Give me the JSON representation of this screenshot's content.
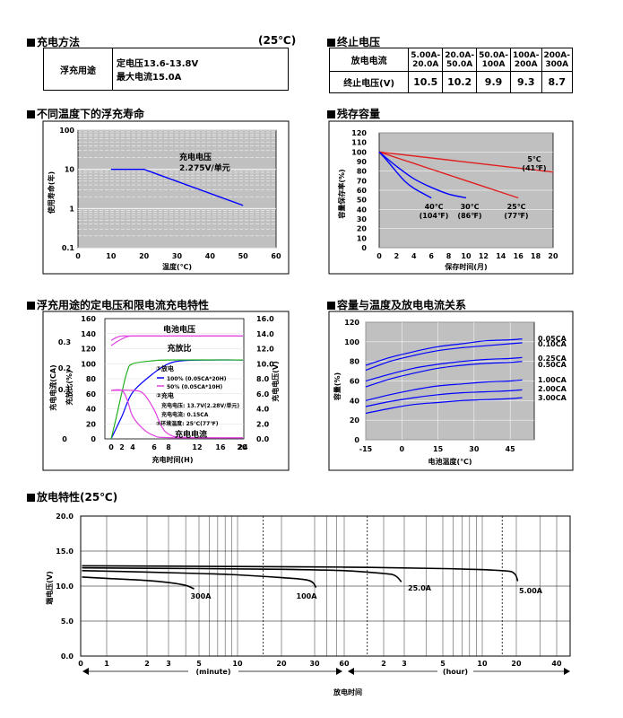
{
  "sections": {
    "charge_method": "充电方法",
    "charge_temp": "(25℃)",
    "cutoff": "终止电压",
    "float_life": "不同温度下的浮充寿命",
    "residual": "残存容量",
    "float_charge": "浮充用途的定电压和限电流充电特性",
    "cap_temp": "容量与温度及放电电流关系",
    "discharge": "放电特性(25℃)"
  },
  "charge_table": {
    "label": "浮充用途",
    "line1": "定电压13.6-13.8V",
    "line2": "最大电流15.0A"
  },
  "cutoff_table": {
    "row1_label": "放电电流",
    "row2_label": "终止电压(V)",
    "currents": [
      "5.00A-20.0A",
      "20.0A-50.0A",
      "50.0A-100A",
      "100A-200A",
      "200A-300A"
    ],
    "voltages": [
      "10.5",
      "10.2",
      "9.9",
      "9.3",
      "8.7"
    ]
  },
  "chart_data": [
    {
      "id": "float_life",
      "type": "line",
      "xlabel": "温度(℃)",
      "ylabel": "使用寿命(年)",
      "x_ticks": [
        "0",
        "10",
        "20",
        "30",
        "40",
        "50",
        "60"
      ],
      "y_ticks": [
        "0.1",
        "1",
        "10",
        "100"
      ],
      "xlim": [
        0,
        60
      ],
      "ylim": [
        0.1,
        100
      ],
      "y_scale": "log",
      "annotation": [
        "充电电压",
        "2.275V/单元"
      ],
      "series": [
        {
          "x": [
            10,
            20,
            50
          ],
          "y": [
            10,
            10,
            1.2
          ],
          "color": "#0000ff"
        }
      ]
    },
    {
      "id": "residual",
      "type": "line",
      "xlabel": "保存时间(月)",
      "ylabel": "容量保存率(%)",
      "x_ticks": [
        "0",
        "2",
        "4",
        "6",
        "8",
        "10",
        "12",
        "14",
        "16",
        "18",
        "20"
      ],
      "y_ticks": [
        "0",
        "10",
        "20",
        "30",
        "40",
        "50",
        "60",
        "70",
        "80",
        "90",
        "100",
        "110",
        "120"
      ],
      "xlim": [
        0,
        20
      ],
      "ylim": [
        0,
        120
      ],
      "series": [
        {
          "name": "5℃",
          "name2": "(41℉)",
          "x": [
            0,
            20
          ],
          "y": [
            100,
            79
          ],
          "color": "#e02020"
        },
        {
          "name": "25℃",
          "name2": "(77℉)",
          "x": [
            0,
            4,
            8,
            12,
            16
          ],
          "y": [
            100,
            88,
            76,
            64,
            52
          ],
          "color": "#e02020"
        },
        {
          "name": "30℃",
          "name2": "(86℉)",
          "x": [
            0,
            2,
            4,
            6,
            8,
            10
          ],
          "y": [
            100,
            85,
            72,
            63,
            56,
            52
          ],
          "color": "#0000ff"
        },
        {
          "name": "40℃",
          "name2": "(104℉)",
          "x": [
            0,
            1,
            2,
            3,
            4,
            6
          ],
          "y": [
            100,
            90,
            79,
            69,
            62,
            52
          ],
          "color": "#0000ff"
        }
      ]
    },
    {
      "id": "float_charge",
      "type": "line",
      "xlabel": "充电时间(H)",
      "x_ticks": [
        "0",
        "2",
        "4",
        "6",
        "8",
        "12",
        "16",
        "20",
        "24"
      ],
      "y1_label": "充电电流(CA)",
      "y1_ticks": [
        "0",
        "0.1",
        "0.2",
        "0.3"
      ],
      "y2_label": "充放比(%)",
      "y2_ticks": [
        "0",
        "20",
        "40",
        "60",
        "80",
        "100",
        "120",
        "140",
        "160"
      ],
      "y3_label": "充电电压(V)",
      "y3_ticks": [
        "0.0",
        "2.0",
        "4.0",
        "6.0",
        "8.0",
        "10.0",
        "12.0",
        "14.0",
        "16.0"
      ],
      "labels": {
        "voltage": "电池电压",
        "ratio": "充放比",
        "current": "充电电流"
      },
      "legend": {
        "l1": "①放电",
        "l2": "100% (0.05CA*20H)",
        "l3": "50% (0.05CA*10H)",
        "l4": "②充电",
        "l5": "充电电压: 13.7V(2.28V/单元)",
        "l6": "充电电流: 0.15CA",
        "l7": "③环境温度: 25℃(77℉)"
      },
      "series": [
        {
          "name": "100%",
          "kind": "voltage",
          "x": [
            0,
            1,
            2,
            3,
            4,
            5,
            24
          ],
          "y": [
            12.4,
            12.9,
            13.3,
            13.6,
            13.7,
            13.7,
            13.7
          ],
          "color": "#e040e0"
        },
        {
          "name": "50%",
          "kind": "voltage",
          "x": [
            0,
            1,
            2,
            3,
            4,
            24
          ],
          "y": [
            13.1,
            13.5,
            13.7,
            13.7,
            13.7,
            13.7
          ],
          "color": "#e040e0"
        },
        {
          "name": "100%",
          "kind": "ratio",
          "x": [
            0,
            2,
            4,
            6,
            8,
            10,
            14,
            24
          ],
          "y": [
            0,
            30,
            62,
            88,
            100,
            104,
            105,
            105
          ],
          "color": "#0000ff"
        },
        {
          "name": "50%",
          "kind": "ratio",
          "x": [
            0,
            1,
            2,
            3,
            4,
            6,
            8,
            24
          ],
          "y": [
            0,
            30,
            62,
            90,
            100,
            104,
            105,
            105
          ],
          "color": "#20b020"
        },
        {
          "name": "100%",
          "kind": "current",
          "x": [
            0,
            4,
            5,
            6,
            7,
            8,
            10,
            24
          ],
          "y": [
            0.15,
            0.15,
            0.14,
            0.09,
            0.04,
            0.015,
            0.005,
            0.003
          ],
          "color": "#e040e0"
        },
        {
          "name": "50%",
          "kind": "current",
          "x": [
            0,
            2,
            3,
            4,
            5,
            6,
            8,
            24
          ],
          "y": [
            0.15,
            0.15,
            0.12,
            0.07,
            0.03,
            0.01,
            0.004,
            0.003
          ],
          "color": "#e040e0"
        }
      ]
    },
    {
      "id": "cap_temp",
      "type": "line",
      "xlabel": "电池温度(℃)",
      "ylabel": "容量(%)",
      "x_ticks": [
        "-15",
        "0",
        "15",
        "30",
        "45"
      ],
      "y_ticks": [
        "0",
        "20",
        "40",
        "60",
        "80",
        "100",
        "120"
      ],
      "xlim": [
        -15,
        55
      ],
      "ylim": [
        0,
        120
      ],
      "series": [
        {
          "name": "0.05CA",
          "x": [
            -15,
            -5,
            5,
            15,
            25,
            35,
            45,
            50
          ],
          "y": [
            76,
            84,
            90,
            95,
            98,
            101,
            102,
            103
          ]
        },
        {
          "name": "0.10CA",
          "x": [
            -15,
            -5,
            5,
            15,
            25,
            35,
            45,
            50
          ],
          "y": [
            71,
            80,
            86,
            91,
            94,
            96,
            98,
            99
          ]
        },
        {
          "name": "0.25CA",
          "x": [
            -15,
            -5,
            5,
            15,
            25,
            35,
            45,
            50
          ],
          "y": [
            60,
            67,
            73,
            77,
            80,
            82,
            83,
            84
          ]
        },
        {
          "name": "0.50CA",
          "x": [
            -15,
            -5,
            5,
            15,
            25,
            35,
            45,
            50
          ],
          "y": [
            54,
            62,
            68,
            73,
            76,
            78,
            79,
            80
          ]
        },
        {
          "name": "1.00CA",
          "x": [
            -15,
            -5,
            5,
            15,
            25,
            35,
            45,
            50
          ],
          "y": [
            40,
            46,
            51,
            55,
            57,
            59,
            60,
            61
          ]
        },
        {
          "name": "2.00CA",
          "x": [
            -15,
            -5,
            5,
            15,
            25,
            35,
            45,
            50
          ],
          "y": [
            34,
            39,
            43,
            46,
            48,
            49,
            50,
            51
          ]
        },
        {
          "name": "3.00CA",
          "x": [
            -15,
            -5,
            5,
            15,
            25,
            35,
            45,
            50
          ],
          "y": [
            27,
            32,
            36,
            38,
            40,
            41,
            42,
            43
          ]
        }
      ]
    },
    {
      "id": "discharge",
      "type": "line",
      "xlabel": "放电时间",
      "ylabel": "端电压(V)",
      "y_ticks": [
        "0.0",
        "5.0",
        "10.0",
        "15.0",
        "20.0"
      ],
      "ylim": [
        0,
        20
      ],
      "minute_label": "(minute)",
      "hour_label": "(hour)",
      "minute_ticks": [
        "0",
        "1",
        "2",
        "3",
        "5",
        "10",
        "20",
        "30",
        "60"
      ],
      "hour_ticks": [
        "2",
        "3",
        "5",
        "10",
        "20",
        "40"
      ],
      "series": [
        {
          "name": "300A",
          "x_min": [
            0.05,
            1,
            2,
            3,
            4,
            4.6
          ],
          "y": [
            11.3,
            11.1,
            10.8,
            10.5,
            10.1,
            9.6
          ]
        },
        {
          "name": "100A",
          "x_min": [
            0.05,
            2,
            5,
            10,
            20,
            28,
            31
          ],
          "y": [
            12.2,
            12.0,
            11.8,
            11.6,
            11.2,
            10.8,
            9.8
          ]
        },
        {
          "name": "25.0A",
          "x_min": [
            0.05,
            5,
            20,
            60,
            120,
            150,
            170
          ],
          "y": [
            12.6,
            12.5,
            12.4,
            12.2,
            11.8,
            11.5,
            10.6
          ]
        },
        {
          "name": "5.00A",
          "x_min": [
            0.05,
            10,
            60,
            300,
            900,
            1150,
            1230
          ],
          "y": [
            12.9,
            12.8,
            12.7,
            12.5,
            12.2,
            11.8,
            10.7
          ]
        }
      ]
    }
  ]
}
